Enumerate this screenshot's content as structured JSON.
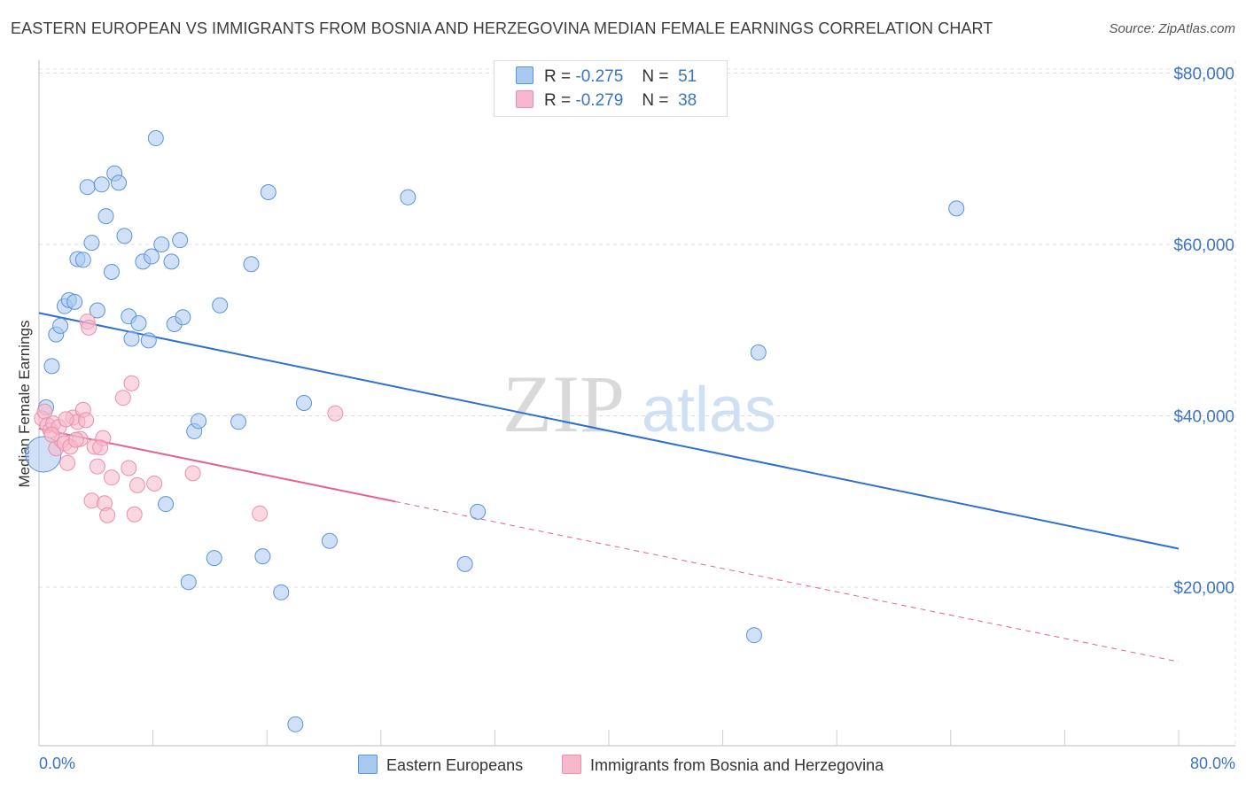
{
  "title": "EASTERN EUROPEAN VS IMMIGRANTS FROM BOSNIA AND HERZEGOVINA MEDIAN FEMALE EARNINGS CORRELATION CHART",
  "source": "Source: ZipAtlas.com",
  "watermark": {
    "zip": "ZIP",
    "atlas": "atlas"
  },
  "legend_top": [
    {
      "r_label": "R =",
      "r_value": "-0.275",
      "n_label": "N =",
      "n_value": "51",
      "color": "#a9c8f0"
    },
    {
      "r_label": "R =",
      "r_value": "-0.279",
      "n_label": "N =",
      "n_value": "38",
      "color": "#f6b8cb"
    }
  ],
  "legend_bottom": [
    {
      "label": "Eastern Europeans",
      "color": "#a9c8f0"
    },
    {
      "label": "Immigrants from Bosnia and Herzegovina",
      "color": "#f6b8cb"
    }
  ],
  "chart_data": {
    "type": "scatter",
    "title": "EASTERN EUROPEAN VS IMMIGRANTS FROM BOSNIA AND HERZEGOVINA MEDIAN FEMALE EARNINGS CORRELATION CHART",
    "xlabel": "",
    "ylabel": "Median Female Earnings",
    "xlim": [
      0,
      80
    ],
    "ylim": [
      1500,
      81500
    ],
    "x_tick_labels": [
      "0.0%",
      "80.0%"
    ],
    "y_ticks": [
      20000,
      40000,
      60000,
      80000
    ],
    "y_tick_labels": [
      "$20,000",
      "$40,000",
      "$60,000",
      "$80,000"
    ],
    "grid": true,
    "legend_position": "top-center",
    "series": [
      {
        "name": "Eastern Europeans",
        "color": "#5b93dc",
        "fill": "#a9c8f0",
        "trend": {
          "x": [
            0,
            80
          ],
          "y": [
            52000,
            24500
          ],
          "style": "solid",
          "color": "#2e6fd0"
        },
        "points": [
          {
            "x": 0.3,
            "y": 35500,
            "big": true
          },
          {
            "x": 0.5,
            "y": 41000
          },
          {
            "x": 0.9,
            "y": 45800
          },
          {
            "x": 1.2,
            "y": 49500
          },
          {
            "x": 1.5,
            "y": 50500
          },
          {
            "x": 1.8,
            "y": 52800
          },
          {
            "x": 2.1,
            "y": 53500
          },
          {
            "x": 2.5,
            "y": 53300
          },
          {
            "x": 2.7,
            "y": 58300
          },
          {
            "x": 3.1,
            "y": 58200
          },
          {
            "x": 3.4,
            "y": 66700
          },
          {
            "x": 3.7,
            "y": 60200
          },
          {
            "x": 4.1,
            "y": 52300
          },
          {
            "x": 4.4,
            "y": 67000
          },
          {
            "x": 4.7,
            "y": 63300
          },
          {
            "x": 5.1,
            "y": 56800
          },
          {
            "x": 5.3,
            "y": 68300
          },
          {
            "x": 5.6,
            "y": 67200
          },
          {
            "x": 6.0,
            "y": 61000
          },
          {
            "x": 6.3,
            "y": 51600
          },
          {
            "x": 6.5,
            "y": 49000
          },
          {
            "x": 7.0,
            "y": 50800
          },
          {
            "x": 7.3,
            "y": 58000
          },
          {
            "x": 7.7,
            "y": 48800
          },
          {
            "x": 7.9,
            "y": 58600
          },
          {
            "x": 8.2,
            "y": 72400
          },
          {
            "x": 8.6,
            "y": 60000
          },
          {
            "x": 8.9,
            "y": 29700
          },
          {
            "x": 9.3,
            "y": 58000
          },
          {
            "x": 9.5,
            "y": 50700
          },
          {
            "x": 9.9,
            "y": 60500
          },
          {
            "x": 10.1,
            "y": 51500
          },
          {
            "x": 10.5,
            "y": 20600
          },
          {
            "x": 10.9,
            "y": 38200
          },
          {
            "x": 11.2,
            "y": 39400
          },
          {
            "x": 12.3,
            "y": 23400
          },
          {
            "x": 12.7,
            "y": 52900
          },
          {
            "x": 14.0,
            "y": 39300
          },
          {
            "x": 14.9,
            "y": 57700
          },
          {
            "x": 15.7,
            "y": 23600
          },
          {
            "x": 16.1,
            "y": 66100
          },
          {
            "x": 17.0,
            "y": 19400
          },
          {
            "x": 18.0,
            "y": 4000
          },
          {
            "x": 18.6,
            "y": 41500
          },
          {
            "x": 20.4,
            "y": 25400
          },
          {
            "x": 25.9,
            "y": 65500
          },
          {
            "x": 29.9,
            "y": 22700
          },
          {
            "x": 30.8,
            "y": 28800
          },
          {
            "x": 50.2,
            "y": 14400
          },
          {
            "x": 50.5,
            "y": 47400
          },
          {
            "x": 64.4,
            "y": 64200
          }
        ]
      },
      {
        "name": "Immigrants from Bosnia and Herzegovina",
        "color": "#ec8eab",
        "fill": "#f6b8cb",
        "trend_solid": {
          "x": [
            0,
            25
          ],
          "y": [
            38500,
            30000
          ],
          "style": "solid",
          "color": "#e5628c"
        },
        "trend_dashed": {
          "x": [
            25,
            80
          ],
          "y": [
            30000,
            11300
          ],
          "style": "dashed",
          "color": "#e5628c"
        },
        "points": [
          {
            "x": 0.2,
            "y": 39700
          },
          {
            "x": 0.4,
            "y": 40500
          },
          {
            "x": 0.6,
            "y": 38900
          },
          {
            "x": 0.8,
            "y": 38300
          },
          {
            "x": 1.0,
            "y": 39100
          },
          {
            "x": 1.2,
            "y": 36200
          },
          {
            "x": 1.4,
            "y": 38700
          },
          {
            "x": 1.6,
            "y": 37100
          },
          {
            "x": 1.8,
            "y": 36800
          },
          {
            "x": 2.0,
            "y": 34500
          },
          {
            "x": 2.2,
            "y": 36400
          },
          {
            "x": 2.4,
            "y": 39800
          },
          {
            "x": 2.7,
            "y": 39300
          },
          {
            "x": 2.9,
            "y": 37300
          },
          {
            "x": 3.1,
            "y": 40700
          },
          {
            "x": 3.3,
            "y": 39500
          },
          {
            "x": 3.4,
            "y": 51000
          },
          {
            "x": 3.5,
            "y": 50300
          },
          {
            "x": 3.7,
            "y": 30100
          },
          {
            "x": 3.9,
            "y": 36400
          },
          {
            "x": 4.1,
            "y": 34100
          },
          {
            "x": 4.5,
            "y": 37400
          },
          {
            "x": 4.6,
            "y": 29800
          },
          {
            "x": 4.8,
            "y": 28400
          },
          {
            "x": 5.1,
            "y": 32800
          },
          {
            "x": 5.9,
            "y": 42100
          },
          {
            "x": 6.3,
            "y": 33900
          },
          {
            "x": 6.5,
            "y": 43800
          },
          {
            "x": 6.7,
            "y": 28500
          },
          {
            "x": 6.9,
            "y": 31900
          },
          {
            "x": 8.1,
            "y": 32100
          },
          {
            "x": 10.8,
            "y": 33300
          },
          {
            "x": 15.5,
            "y": 28600
          },
          {
            "x": 20.8,
            "y": 40300
          },
          {
            "x": 0.9,
            "y": 37800
          },
          {
            "x": 1.9,
            "y": 39600
          },
          {
            "x": 2.6,
            "y": 37200
          },
          {
            "x": 4.3,
            "y": 36300
          }
        ]
      }
    ]
  }
}
